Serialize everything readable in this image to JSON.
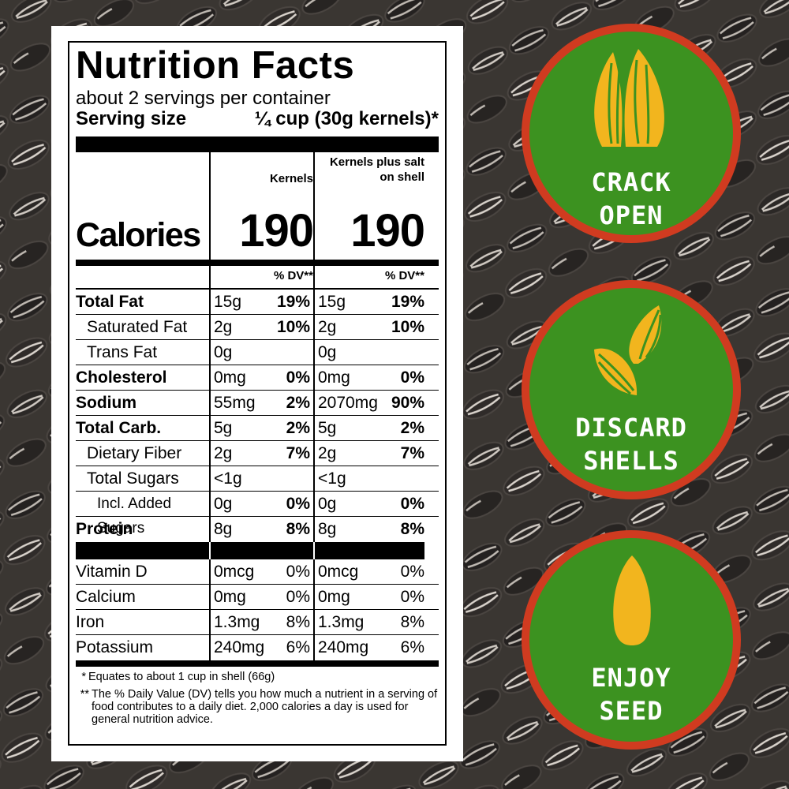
{
  "colors": {
    "circle_green": "#3c9220",
    "circle_red": "#d03b20",
    "seed_yellow": "#f2b51e"
  },
  "label": {
    "title": "Nutrition Facts",
    "servings": "about 2 servings per container",
    "serving_size_label": "Serving size",
    "serving_size_value": "¼ cup (30g kernels)*",
    "calories_label": "Calories",
    "col1_header": "Kernels",
    "col2_header_line1": "Kernels plus salt",
    "col2_header_line2": "on shell",
    "col1_calories": "190",
    "col2_calories": "190",
    "dv_header": "% DV**",
    "nutrients": [
      {
        "name": "Total Fat",
        "a": "15g",
        "a_dv": "19%",
        "b": "15g",
        "b_dv": "19%"
      },
      {
        "name": "Saturated Fat",
        "a": "2g",
        "a_dv": "10%",
        "b": "2g",
        "b_dv": "10%"
      },
      {
        "name": "Trans Fat",
        "a": "0g",
        "a_dv": "",
        "b": "0g",
        "b_dv": ""
      },
      {
        "name": "Cholesterol",
        "a": "0mg",
        "a_dv": "0%",
        "b": "0mg",
        "b_dv": "0%"
      },
      {
        "name": "Sodium",
        "a": "55mg",
        "a_dv": "2%",
        "b": "2070mg",
        "b_dv": "90%"
      },
      {
        "name": "Total Carb.",
        "a": "5g",
        "a_dv": "2%",
        "b": "5g",
        "b_dv": "2%"
      },
      {
        "name": "Dietary Fiber",
        "a": "2g",
        "a_dv": "7%",
        "b": "2g",
        "b_dv": "7%"
      },
      {
        "name": "Total Sugars",
        "a": "<1g",
        "a_dv": "",
        "b": "<1g",
        "b_dv": ""
      },
      {
        "name": "Incl. Added Sugars",
        "a": "0g",
        "a_dv": "0%",
        "b": "0g",
        "b_dv": "0%"
      },
      {
        "name": "Protein",
        "a": "8g",
        "a_dv": "8%",
        "b": "8g",
        "b_dv": "8%"
      }
    ],
    "minerals": [
      {
        "name": "Vitamin D",
        "a": "0mcg",
        "a_dv": "0%",
        "b": "0mcg",
        "b_dv": "0%"
      },
      {
        "name": "Calcium",
        "a": "0mg",
        "a_dv": "0%",
        "b": "0mg",
        "b_dv": "0%"
      },
      {
        "name": "Iron",
        "a": "1.3mg",
        "a_dv": "8%",
        "b": "1.3mg",
        "b_dv": "8%"
      },
      {
        "name": "Potassium",
        "a": "240mg",
        "a_dv": "6%",
        "b": "240mg",
        "b_dv": "6%"
      }
    ],
    "footnote1_mark": "*",
    "footnote1": "Equates to about 1 cup in shell (66g)",
    "footnote2_mark": "**",
    "footnote2": "The % Daily Value (DV) tells you how much a nutrient in a serving of food contributes to a daily diet. 2,000 calories a day is used for general nutrition advice."
  },
  "steps": [
    {
      "line1": "CRACK",
      "line2": "OPEN",
      "icon": "cracked-seed-icon"
    },
    {
      "line1": "DISCARD",
      "line2": "SHELLS",
      "icon": "shells-icon"
    },
    {
      "line1": "ENJOY",
      "line2": "SEED",
      "icon": "kernel-icon"
    }
  ]
}
